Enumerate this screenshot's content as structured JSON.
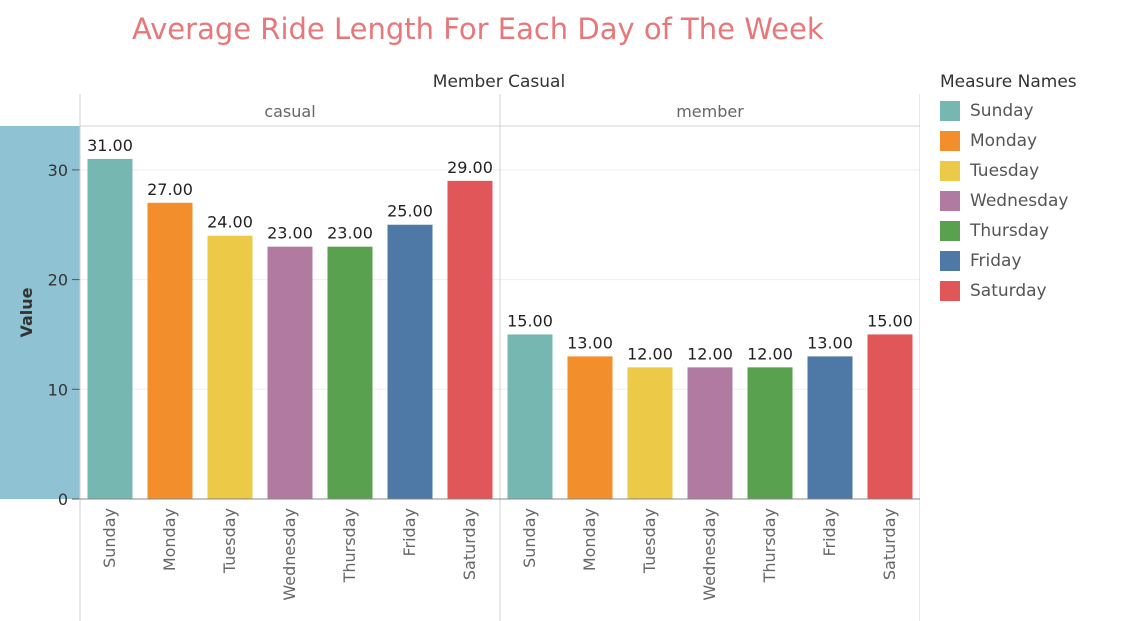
{
  "title": "Average Ride Length For Each Day of The Week",
  "legend": {
    "title": "Measure Names",
    "items": [
      {
        "label": "Sunday",
        "color": "#76b7b2"
      },
      {
        "label": "Monday",
        "color": "#f28e2b"
      },
      {
        "label": "Tuesday",
        "color": "#edc948"
      },
      {
        "label": "Wednesday",
        "color": "#b07aa1"
      },
      {
        "label": "Thursday",
        "color": "#59a14f"
      },
      {
        "label": "Friday",
        "color": "#4e79a7"
      },
      {
        "label": "Saturday",
        "color": "#e15759"
      }
    ]
  },
  "chart_data": {
    "type": "bar",
    "title": "Average Ride Length For Each Day of The Week",
    "column_header": "Member Casual",
    "ylabel": "Value",
    "ylim": [
      0,
      34
    ],
    "yticks": [
      0,
      10,
      20,
      30
    ],
    "grid": true,
    "legend_placement": "right",
    "categories": [
      "Sunday",
      "Monday",
      "Tuesday",
      "Wednesday",
      "Thursday",
      "Friday",
      "Saturday"
    ],
    "panels": [
      {
        "name": "casual",
        "values": [
          31,
          27,
          24,
          23,
          23,
          25,
          29
        ],
        "labels": [
          "31.00",
          "27.00",
          "24.00",
          "23.00",
          "23.00",
          "25.00",
          "29.00"
        ]
      },
      {
        "name": "member",
        "values": [
          15,
          13,
          12,
          12,
          12,
          13,
          15
        ],
        "labels": [
          "15.00",
          "13.00",
          "12.00",
          "12.00",
          "12.00",
          "13.00",
          "15.00"
        ]
      }
    ],
    "colors": [
      "#76b7b2",
      "#f28e2b",
      "#edc948",
      "#b07aa1",
      "#59a14f",
      "#4e79a7",
      "#e15759"
    ],
    "axis_band_color": "#8fc3d3"
  }
}
